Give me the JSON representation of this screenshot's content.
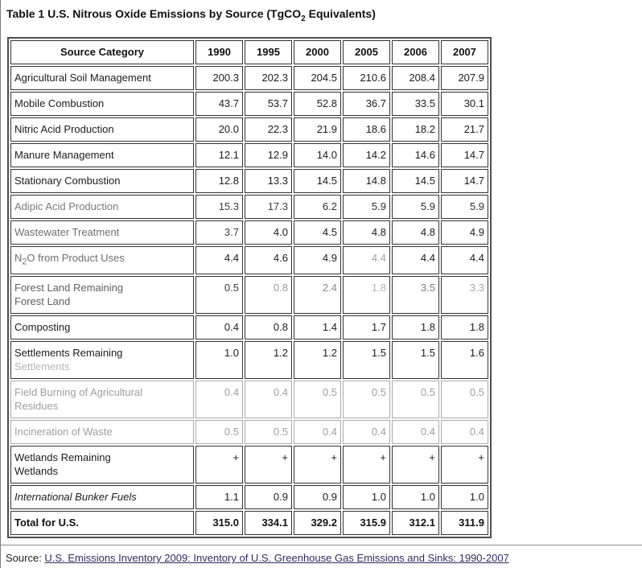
{
  "title": {
    "pre": "Table 1 U.S. Nitrous Oxide Emissions by Source (TgCO",
    "sub": "2",
    "post": " Equivalents)"
  },
  "table": {
    "header_label": "Source Category",
    "years": [
      "1990",
      "1995",
      "2000",
      "2005",
      "2006",
      "2007"
    ],
    "rows": [
      {
        "parts": [
          {
            "text": "Agricultural Soil Management"
          }
        ],
        "values": [
          "200.3",
          "202.3",
          "204.5",
          "210.6",
          "208.4",
          "207.9"
        ]
      },
      {
        "parts": [
          {
            "text": "Mobile Combustion"
          }
        ],
        "values": [
          "43.7",
          "53.7",
          "52.8",
          "36.7",
          "33.5",
          "30.1"
        ]
      },
      {
        "parts": [
          {
            "text": "Nitric Acid Production"
          }
        ],
        "values": [
          "20.0",
          "22.3",
          "21.9",
          "18.6",
          "18.2",
          "21.7"
        ]
      },
      {
        "parts": [
          {
            "text": "Manure Management"
          }
        ],
        "values": [
          "12.1",
          "12.9",
          "14.0",
          "14.2",
          "14.6",
          "14.7"
        ]
      },
      {
        "parts": [
          {
            "text": "Stationary Combustion"
          }
        ],
        "values": [
          "12.8",
          "13.3",
          "14.5",
          "14.8",
          "14.5",
          "14.7"
        ]
      },
      {
        "parts": [
          {
            "text": "Adipic Acid Production",
            "color": "#7a7a7a"
          }
        ],
        "values": [
          "15.3",
          "17.3",
          "6.2",
          "5.9",
          "5.9",
          "5.9"
        ],
        "value_colors": [
          "#3c3c3c",
          "#3c3c3c",
          "#2e2e2e",
          "#2e2e2e",
          "#2e2e2e",
          "#2e2e2e"
        ]
      },
      {
        "parts": [
          {
            "text": "Wastewater Treatment",
            "color": "#6f6f6f"
          }
        ],
        "values": [
          "3.7",
          "4.0",
          "4.5",
          "4.8",
          "4.8",
          "4.9"
        ],
        "value_colors": [
          "#3c3c3c",
          null,
          null,
          null,
          null,
          null
        ]
      },
      {
        "parts": [
          {
            "text": "N"
          },
          {
            "text": "2",
            "sub": true
          },
          {
            "text": "O from Product Uses"
          }
        ],
        "label_color": "#6f6f6f",
        "values": [
          "4.4",
          "4.6",
          "4.9",
          "4.4",
          "4.4",
          "4.4"
        ],
        "value_colors": [
          null,
          null,
          null,
          "#a2a2a2",
          null,
          null
        ]
      },
      {
        "parts": [
          {
            "text": "Forest Land Remaining"
          },
          {
            "br": true
          },
          {
            "text": "Forest Land"
          }
        ],
        "label_color": "#5f5f5f",
        "values": [
          "0.5",
          "0.8",
          "2.4",
          "1.8",
          "3.5",
          "3.3"
        ],
        "value_colors": [
          "#3e3e3e",
          "#9a9a9a",
          "#8a8a8a",
          "#b5b5b5",
          "#7d7d7d",
          "#a8a8a8"
        ]
      },
      {
        "parts": [
          {
            "text": "Composting"
          }
        ],
        "values": [
          "0.4",
          "0.8",
          "1.4",
          "1.7",
          "1.8",
          "1.8"
        ]
      },
      {
        "parts": [
          {
            "text": "Settlements Remaining"
          },
          {
            "br": true
          },
          {
            "text": "Settlements",
            "color": "#b5b5b5"
          }
        ],
        "values": [
          "1.0",
          "1.2",
          "1.2",
          "1.5",
          "1.5",
          "1.6"
        ]
      },
      {
        "parts": [
          {
            "text": "Field Burning of Agricultural"
          },
          {
            "br": true
          },
          {
            "text": "Residues"
          }
        ],
        "row_class": "muted",
        "values": [
          "0.4",
          "0.4",
          "0.5",
          "0.5",
          "0.5",
          "0.5"
        ]
      },
      {
        "parts": [
          {
            "text": "Incineration of Waste"
          }
        ],
        "row_class": "muted",
        "values": [
          "0.5",
          "0.5",
          "0.4",
          "0.4",
          "0.4",
          "0.4"
        ]
      },
      {
        "parts": [
          {
            "text": "Wetlands Remaining"
          },
          {
            "br": true
          },
          {
            "text": "Wetlands"
          }
        ],
        "values": [
          "+",
          "+",
          "+",
          "+",
          "+",
          "+"
        ]
      },
      {
        "parts": [
          {
            "text": "International Bunker Fuels"
          }
        ],
        "row_class": "italic",
        "values": [
          "1.1",
          "0.9",
          "0.9",
          "1.0",
          "1.0",
          "1.0"
        ]
      },
      {
        "parts": [
          {
            "text": "Total for U.S."
          }
        ],
        "row_class": "total",
        "values": [
          "315.0",
          "334.1",
          "329.2",
          "315.9",
          "312.1",
          "311.9"
        ]
      }
    ]
  },
  "source": {
    "prefix": "Source: ",
    "link_text": "U.S. Emissions Inventory 2009: Inventory of U.S. Greenhouse Gas Emissions and Sinks: 1990-2007"
  }
}
